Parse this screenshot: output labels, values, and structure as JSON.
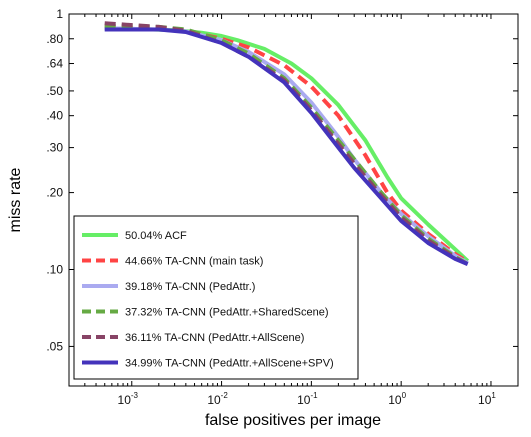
{
  "chart_data": {
    "type": "line",
    "xlabel": "false positives per image",
    "ylabel": "miss rate",
    "xscale": "log",
    "yscale": "log",
    "xlim": [
      0.0002,
      20
    ],
    "ylim": [
      0.035,
      1
    ],
    "x_ticks": [
      {
        "value": 0.001,
        "base": "10",
        "exp": "-3"
      },
      {
        "value": 0.01,
        "base": "10",
        "exp": "-2"
      },
      {
        "value": 0.1,
        "base": "10",
        "exp": "-1"
      },
      {
        "value": 1,
        "base": "10",
        "exp": "0"
      },
      {
        "value": 10,
        "base": "10",
        "exp": "1"
      }
    ],
    "y_ticks": [
      {
        "value": 1,
        "label": "1"
      },
      {
        "value": 0.8,
        "label": ".80"
      },
      {
        "value": 0.64,
        "label": ".64"
      },
      {
        "value": 0.5,
        "label": ".50"
      },
      {
        "value": 0.4,
        "label": ".40"
      },
      {
        "value": 0.3,
        "label": ".30"
      },
      {
        "value": 0.2,
        "label": ".20"
      },
      {
        "value": 0.1,
        "label": ".10"
      },
      {
        "value": 0.05,
        "label": ".05"
      }
    ],
    "grid": false,
    "legend_position": "bottom-left",
    "series": [
      {
        "name": "50.04% ACF",
        "color": "#66ee66",
        "dash": "solid",
        "points": [
          [
            0.0005,
            0.88
          ],
          [
            0.003,
            0.865
          ],
          [
            0.006,
            0.845
          ],
          [
            0.01,
            0.82
          ],
          [
            0.015,
            0.79
          ],
          [
            0.03,
            0.73
          ],
          [
            0.06,
            0.64
          ],
          [
            0.1,
            0.56
          ],
          [
            0.2,
            0.44
          ],
          [
            0.4,
            0.32
          ],
          [
            0.7,
            0.23
          ],
          [
            1,
            0.19
          ],
          [
            2,
            0.15
          ],
          [
            4,
            0.12
          ],
          [
            5.5,
            0.108
          ]
        ]
      },
      {
        "name": "44.66% TA-CNN (main task)",
        "color": "#ff4444",
        "dash": "dashed",
        "points": [
          [
            0.0005,
            0.89
          ],
          [
            0.002,
            0.875
          ],
          [
            0.004,
            0.86
          ],
          [
            0.01,
            0.8
          ],
          [
            0.02,
            0.74
          ],
          [
            0.05,
            0.63
          ],
          [
            0.1,
            0.52
          ],
          [
            0.2,
            0.4
          ],
          [
            0.4,
            0.28
          ],
          [
            0.7,
            0.2
          ],
          [
            1,
            0.17
          ],
          [
            2,
            0.138
          ],
          [
            4,
            0.115
          ],
          [
            5.5,
            0.107
          ]
        ]
      },
      {
        "name": "39.18% TA-CNN (PedAttr.)",
        "color": "#aaaaf0",
        "dash": "solid",
        "points": [
          [
            0.0005,
            0.88
          ],
          [
            0.002,
            0.87
          ],
          [
            0.004,
            0.855
          ],
          [
            0.01,
            0.79
          ],
          [
            0.02,
            0.71
          ],
          [
            0.05,
            0.58
          ],
          [
            0.1,
            0.45
          ],
          [
            0.2,
            0.33
          ],
          [
            0.3,
            0.27
          ],
          [
            0.6,
            0.2
          ],
          [
            1,
            0.165
          ],
          [
            2,
            0.135
          ],
          [
            4,
            0.113
          ],
          [
            5.5,
            0.106
          ]
        ]
      },
      {
        "name": "37.32% TA-CNN (PedAttr.+SharedScene)",
        "color": "#66aa44",
        "dash": "dashed",
        "points": [
          [
            0.0005,
            0.9
          ],
          [
            0.002,
            0.89
          ],
          [
            0.004,
            0.87
          ],
          [
            0.01,
            0.79
          ],
          [
            0.02,
            0.7
          ],
          [
            0.05,
            0.56
          ],
          [
            0.1,
            0.43
          ],
          [
            0.2,
            0.32
          ],
          [
            0.3,
            0.27
          ],
          [
            0.6,
            0.2
          ],
          [
            1,
            0.163
          ],
          [
            2,
            0.132
          ],
          [
            4,
            0.112
          ],
          [
            5.5,
            0.105
          ]
        ]
      },
      {
        "name": "36.11% TA-CNN (PedAttr.+AllScene)",
        "color": "#884466",
        "dash": "dashed",
        "points": [
          [
            0.0005,
            0.92
          ],
          [
            0.002,
            0.89
          ],
          [
            0.004,
            0.86
          ],
          [
            0.01,
            0.77
          ],
          [
            0.02,
            0.68
          ],
          [
            0.05,
            0.55
          ],
          [
            0.1,
            0.42
          ],
          [
            0.2,
            0.31
          ],
          [
            0.3,
            0.26
          ],
          [
            0.6,
            0.195
          ],
          [
            1,
            0.16
          ],
          [
            2,
            0.13
          ],
          [
            4,
            0.111
          ],
          [
            5.5,
            0.105
          ]
        ]
      },
      {
        "name": "34.99% TA-CNN (PedAttr.+AllScene+SPV)",
        "color": "#4433bb",
        "dash": "solid",
        "points": [
          [
            0.0005,
            0.87
          ],
          [
            0.002,
            0.87
          ],
          [
            0.004,
            0.85
          ],
          [
            0.01,
            0.77
          ],
          [
            0.02,
            0.68
          ],
          [
            0.05,
            0.54
          ],
          [
            0.1,
            0.41
          ],
          [
            0.2,
            0.3
          ],
          [
            0.3,
            0.25
          ],
          [
            0.6,
            0.19
          ],
          [
            1,
            0.155
          ],
          [
            2,
            0.127
          ],
          [
            4,
            0.11
          ],
          [
            5.5,
            0.105
          ]
        ]
      }
    ]
  }
}
